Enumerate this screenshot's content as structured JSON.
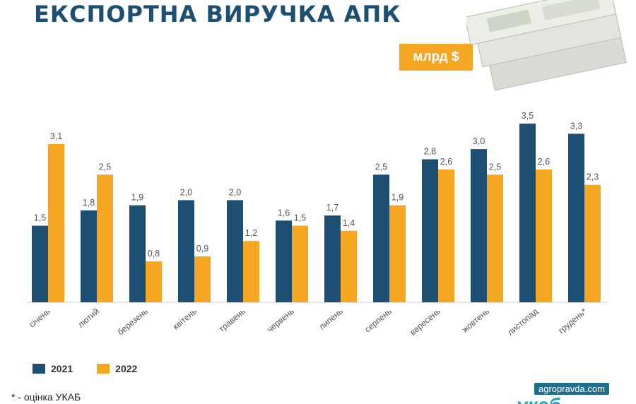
{
  "title": "ЕКСПОРТНА ВИРУЧКА АПК",
  "unit_badge": "млрд $",
  "footnote": "* - оцінка УКАБ",
  "watermark": "agropravda.com",
  "logo_text": "укаб",
  "colors": {
    "series_2021": "#1d4f73",
    "series_2022": "#f5a623",
    "title": "#1d4f73"
  },
  "chart_data": {
    "type": "bar",
    "title": "ЕКСПОРТНА ВИРУЧКА АПК",
    "unit": "млрд $",
    "categories": [
      "січень",
      "лютий",
      "березень",
      "квітень",
      "травень",
      "червень",
      "липень",
      "серпень",
      "вересень",
      "жовтень",
      "листопад",
      "грудень*"
    ],
    "series": [
      {
        "name": "2021",
        "color": "#1d4f73",
        "values": [
          1.5,
          1.8,
          1.9,
          2.0,
          2.0,
          1.6,
          1.7,
          2.5,
          2.8,
          3.0,
          3.5,
          3.3
        ]
      },
      {
        "name": "2022",
        "color": "#f5a623",
        "values": [
          3.1,
          2.5,
          0.8,
          0.9,
          1.2,
          1.5,
          1.4,
          1.9,
          2.6,
          2.5,
          2.6,
          2.3
        ]
      }
    ],
    "ylim": [
      0,
      3.5
    ],
    "grid": false,
    "legend_position": "bottom-left"
  }
}
